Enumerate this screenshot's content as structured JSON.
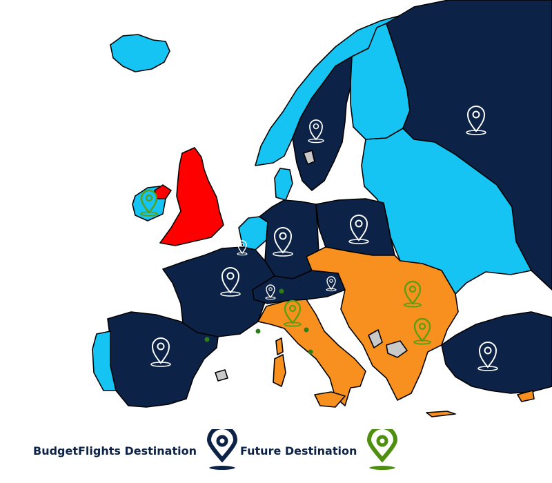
{
  "colors": {
    "budgetflights": "#0c2246",
    "future": "#f7901e",
    "light": "#15c4f2",
    "highlight": "#ff0000",
    "neutral": "#c9c9c9",
    "pin_budget": "#0c2246",
    "pin_future": "#4e8f10"
  },
  "legend": {
    "budget_label": "BudgetFlights Destination",
    "future_label": "Future Destination",
    "budget_icon": "map-pin-icon",
    "future_icon": "map-pin-icon"
  }
}
